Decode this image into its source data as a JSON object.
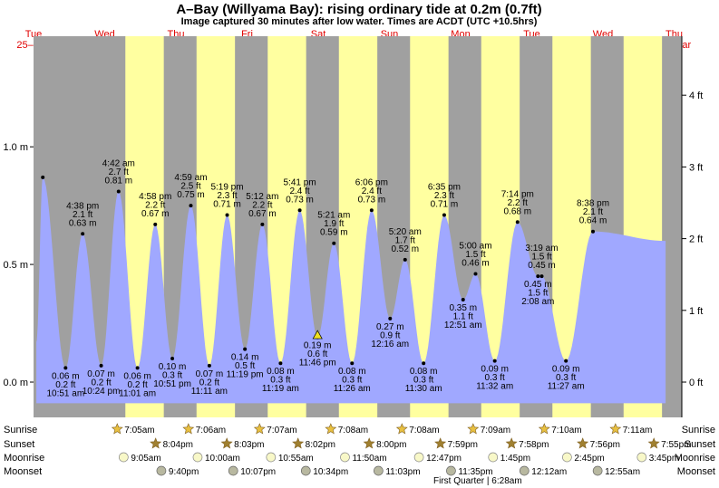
{
  "title": "A–Bay (Willyama Bay): rising  ordinary tide at 0.2m (0.7ft)",
  "subtitle": "Image captured 30 minutes after low water. Times are ACDT (UTC +10.5hrs)",
  "colors": {
    "night": "#a0a0a0",
    "day": "#ffffa0",
    "tide": "#a0a8ff",
    "day_text": "#e00000",
    "sun": "#e8c040",
    "moon": "#f8f8c8"
  },
  "chart_data": {
    "type": "area",
    "days": [
      {
        "weekday": "Tue",
        "date": "25–Feb"
      },
      {
        "weekday": "Wed",
        "date": "26–Feb"
      },
      {
        "weekday": "Thu",
        "date": "27–Feb"
      },
      {
        "weekday": "Fri",
        "date": "28–Feb"
      },
      {
        "weekday": "Sat",
        "date": "29–Feb"
      },
      {
        "weekday": "Sun",
        "date": "01–Mar"
      },
      {
        "weekday": "Mon",
        "date": "02–Mar"
      },
      {
        "weekday": "Tue",
        "date": "03–Mar"
      },
      {
        "weekday": "Wed",
        "date": "04–Mar"
      },
      {
        "weekday": "Thu",
        "date": "05–Mar"
      }
    ],
    "y_left": {
      "unit": "m",
      "ylim": [
        -0.15,
        1.47
      ],
      "ticks": [
        {
          "v": 0,
          "label": "0.0 m"
        },
        {
          "v": 0.5,
          "label": "0.5 m"
        },
        {
          "v": 1.0,
          "label": "1.0 m"
        }
      ]
    },
    "y_right": {
      "unit": "ft",
      "ticks": [
        {
          "v": 0,
          "label": "0 ft"
        },
        {
          "v": 1,
          "label": "1 ft"
        },
        {
          "v": 2,
          "label": "2 ft"
        },
        {
          "v": 3,
          "label": "3 ft"
        },
        {
          "v": 4,
          "label": "4 ft"
        }
      ]
    },
    "x_range": [
      0,
      10
    ],
    "series_start": {
      "t": 0.04,
      "h": 0.17
    },
    "series_end": {
      "t": 8.88,
      "h": 0.6
    },
    "extremes": [
      {
        "t": 0.13,
        "h": 0.87,
        "time": "",
        "ft": "",
        "m": ""
      },
      {
        "t": 0.45,
        "h": 0.06,
        "time": "10:51 am",
        "ft": "0.2 ft",
        "m": "0.06 m"
      },
      {
        "t": 0.69,
        "h": 0.63,
        "time": "4:38 pm",
        "ft": "2.1 ft",
        "m": "0.63 m"
      },
      {
        "t": 0.95,
        "h": 0.07,
        "time": "10:24 pm",
        "ft": "0.2 ft",
        "m": "0.07 m"
      },
      {
        "t": 1.195,
        "h": 0.81,
        "time": "4:42 am",
        "ft": "2.7 ft",
        "m": "0.81 m"
      },
      {
        "t": 1.46,
        "h": 0.06,
        "time": "11:01 am",
        "ft": "0.2 ft",
        "m": "0.06 m"
      },
      {
        "t": 1.71,
        "h": 0.67,
        "time": "4:58 pm",
        "ft": "2.2 ft",
        "m": "0.67 m"
      },
      {
        "t": 1.95,
        "h": 0.1,
        "time": "10:51 pm",
        "ft": "0.3 ft",
        "m": "0.10 m"
      },
      {
        "t": 2.21,
        "h": 0.75,
        "time": "4:59 am",
        "ft": "2.5 ft",
        "m": "0.75 m"
      },
      {
        "t": 2.47,
        "h": 0.07,
        "time": "11:11 am",
        "ft": "0.2 ft",
        "m": "0.07 m"
      },
      {
        "t": 2.72,
        "h": 0.71,
        "time": "5:19 pm",
        "ft": "2.3 ft",
        "m": "0.71 m"
      },
      {
        "t": 2.97,
        "h": 0.14,
        "time": "11:19 pm",
        "ft": "0.5 ft",
        "m": "0.14 m"
      },
      {
        "t": 3.215,
        "h": 0.67,
        "time": "5:12 am",
        "ft": "2.2 ft",
        "m": "0.67 m"
      },
      {
        "t": 3.47,
        "h": 0.08,
        "time": "11:19 am",
        "ft": "0.3 ft",
        "m": "0.08 m"
      },
      {
        "t": 3.74,
        "h": 0.73,
        "time": "5:41 pm",
        "ft": "2.4 ft",
        "m": "0.73 m"
      },
      {
        "t": 3.99,
        "h": 0.19,
        "time": "11:46 pm",
        "ft": "0.6 ft",
        "m": "0.19 m"
      },
      {
        "t": 4.22,
        "h": 0.59,
        "time": "5:21 am",
        "ft": "1.9 ft",
        "m": "0.59 m"
      },
      {
        "t": 4.475,
        "h": 0.08,
        "time": "11:26 am",
        "ft": "0.3 ft",
        "m": "0.08 m"
      },
      {
        "t": 4.75,
        "h": 0.73,
        "time": "6:06 pm",
        "ft": "2.4 ft",
        "m": "0.73 m"
      },
      {
        "t": 5.01,
        "h": 0.27,
        "time": "12:16 am",
        "ft": "0.9 ft",
        "m": "0.27 m"
      },
      {
        "t": 5.22,
        "h": 0.52,
        "time": "5:20 am",
        "ft": "1.7 ft",
        "m": "0.52 m"
      },
      {
        "t": 5.48,
        "h": 0.08,
        "time": "11:30 am",
        "ft": "0.3 ft",
        "m": "0.08 m"
      },
      {
        "t": 5.77,
        "h": 0.71,
        "time": "6:35 pm",
        "ft": "2.3 ft",
        "m": "0.71 m"
      },
      {
        "t": 6.035,
        "h": 0.35,
        "time": "12:51 am",
        "ft": "1.1 ft",
        "m": "0.35 m"
      },
      {
        "t": 6.21,
        "h": 0.46,
        "time": "5:00 am",
        "ft": "1.5 ft",
        "m": "0.46 m"
      },
      {
        "t": 6.48,
        "h": 0.09,
        "time": "11:32 am",
        "ft": "0.3 ft",
        "m": "0.09 m"
      },
      {
        "t": 6.8,
        "h": 0.68,
        "time": "7:14 pm",
        "ft": "2.2 ft",
        "m": "0.68 m"
      },
      {
        "t": 7.087,
        "h": 0.45,
        "time": "2:08 am",
        "ft": "1.5 ft",
        "m": "0.45 m"
      },
      {
        "t": 7.14,
        "h": 0.45,
        "time": "3:19 am",
        "ft": "1.5 ft",
        "m": "0.45 m"
      },
      {
        "t": 7.48,
        "h": 0.09,
        "time": "11:27 am",
        "ft": "0.3 ft",
        "m": "0.09 m"
      },
      {
        "t": 7.86,
        "h": 0.64,
        "time": "8:38 pm",
        "ft": "2.1 ft",
        "m": "0.64 m"
      }
    ],
    "current_marker": {
      "t": 3.99,
      "h": 0.2
    }
  },
  "sun_moon": {
    "row_labels": [
      "Sunrise",
      "Sunset",
      "Moonrise",
      "Moonset"
    ],
    "sunrise": [
      {
        "t": 1.29,
        "time": "7:05am"
      },
      {
        "t": 2.29,
        "time": "7:06am"
      },
      {
        "t": 3.29,
        "time": "7:07am"
      },
      {
        "t": 4.29,
        "time": "7:08am"
      },
      {
        "t": 5.29,
        "time": "7:08am"
      },
      {
        "t": 6.29,
        "time": "7:09am"
      },
      {
        "t": 7.29,
        "time": "7:10am"
      },
      {
        "t": 8.29,
        "time": "7:11am"
      }
    ],
    "sunset": [
      {
        "t": 1.83,
        "time": "8:04pm"
      },
      {
        "t": 2.83,
        "time": "8:03pm"
      },
      {
        "t": 3.83,
        "time": "8:02pm"
      },
      {
        "t": 4.83,
        "time": "8:00pm"
      },
      {
        "t": 5.83,
        "time": "7:59pm"
      },
      {
        "t": 6.83,
        "time": "7:58pm"
      },
      {
        "t": 7.83,
        "time": "7:56pm"
      },
      {
        "t": 8.83,
        "time": "7:55pm"
      }
    ],
    "moonrise": [
      {
        "t": 1.38,
        "time": "9:05am"
      },
      {
        "t": 2.42,
        "time": "10:00am"
      },
      {
        "t": 3.45,
        "time": "10:55am"
      },
      {
        "t": 4.49,
        "time": "11:50am"
      },
      {
        "t": 5.53,
        "time": "12:47pm"
      },
      {
        "t": 6.57,
        "time": "1:45pm"
      },
      {
        "t": 7.61,
        "time": "2:45pm"
      },
      {
        "t": 8.66,
        "time": "3:45pm"
      }
    ],
    "moonset": [
      {
        "t": 1.91,
        "time": "9:40pm"
      },
      {
        "t": 2.92,
        "time": "10:07pm"
      },
      {
        "t": 3.94,
        "time": "10:34pm"
      },
      {
        "t": 4.96,
        "time": "11:03pm"
      },
      {
        "t": 5.98,
        "time": "11:35pm"
      },
      {
        "t": 7.01,
        "time": "12:12am"
      },
      {
        "t": 8.04,
        "time": "12:55am"
      }
    ],
    "phase_note": "First Quarter | 6:28am"
  }
}
